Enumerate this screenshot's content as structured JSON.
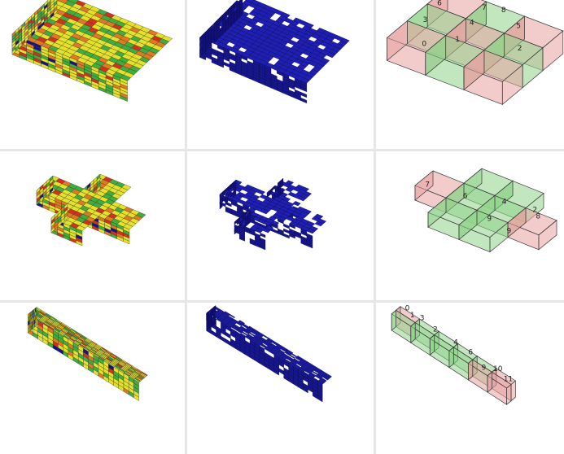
{
  "rows": [
    {
      "name": "square-slab",
      "labels": [
        "8",
        "7",
        "5",
        "6",
        "4",
        "3",
        "1",
        "2",
        "0"
      ]
    },
    {
      "name": "cross",
      "labels": [
        "2",
        "4",
        "6",
        "8",
        "7",
        "9",
        "9"
      ]
    },
    {
      "name": "long-box",
      "labels": [
        "0",
        "3",
        "1",
        "2",
        "4",
        "6",
        "10",
        "11",
        "9"
      ]
    }
  ],
  "colors": {
    "yellow": "#e3e12a",
    "green": "#3fae3a",
    "red": "#d2321c",
    "navy": "#14148a",
    "blue": "#1f1fb4",
    "pink_fill": "#e8a0a0",
    "green_fill": "#8fd48a",
    "edge": "#3a3a3a"
  }
}
